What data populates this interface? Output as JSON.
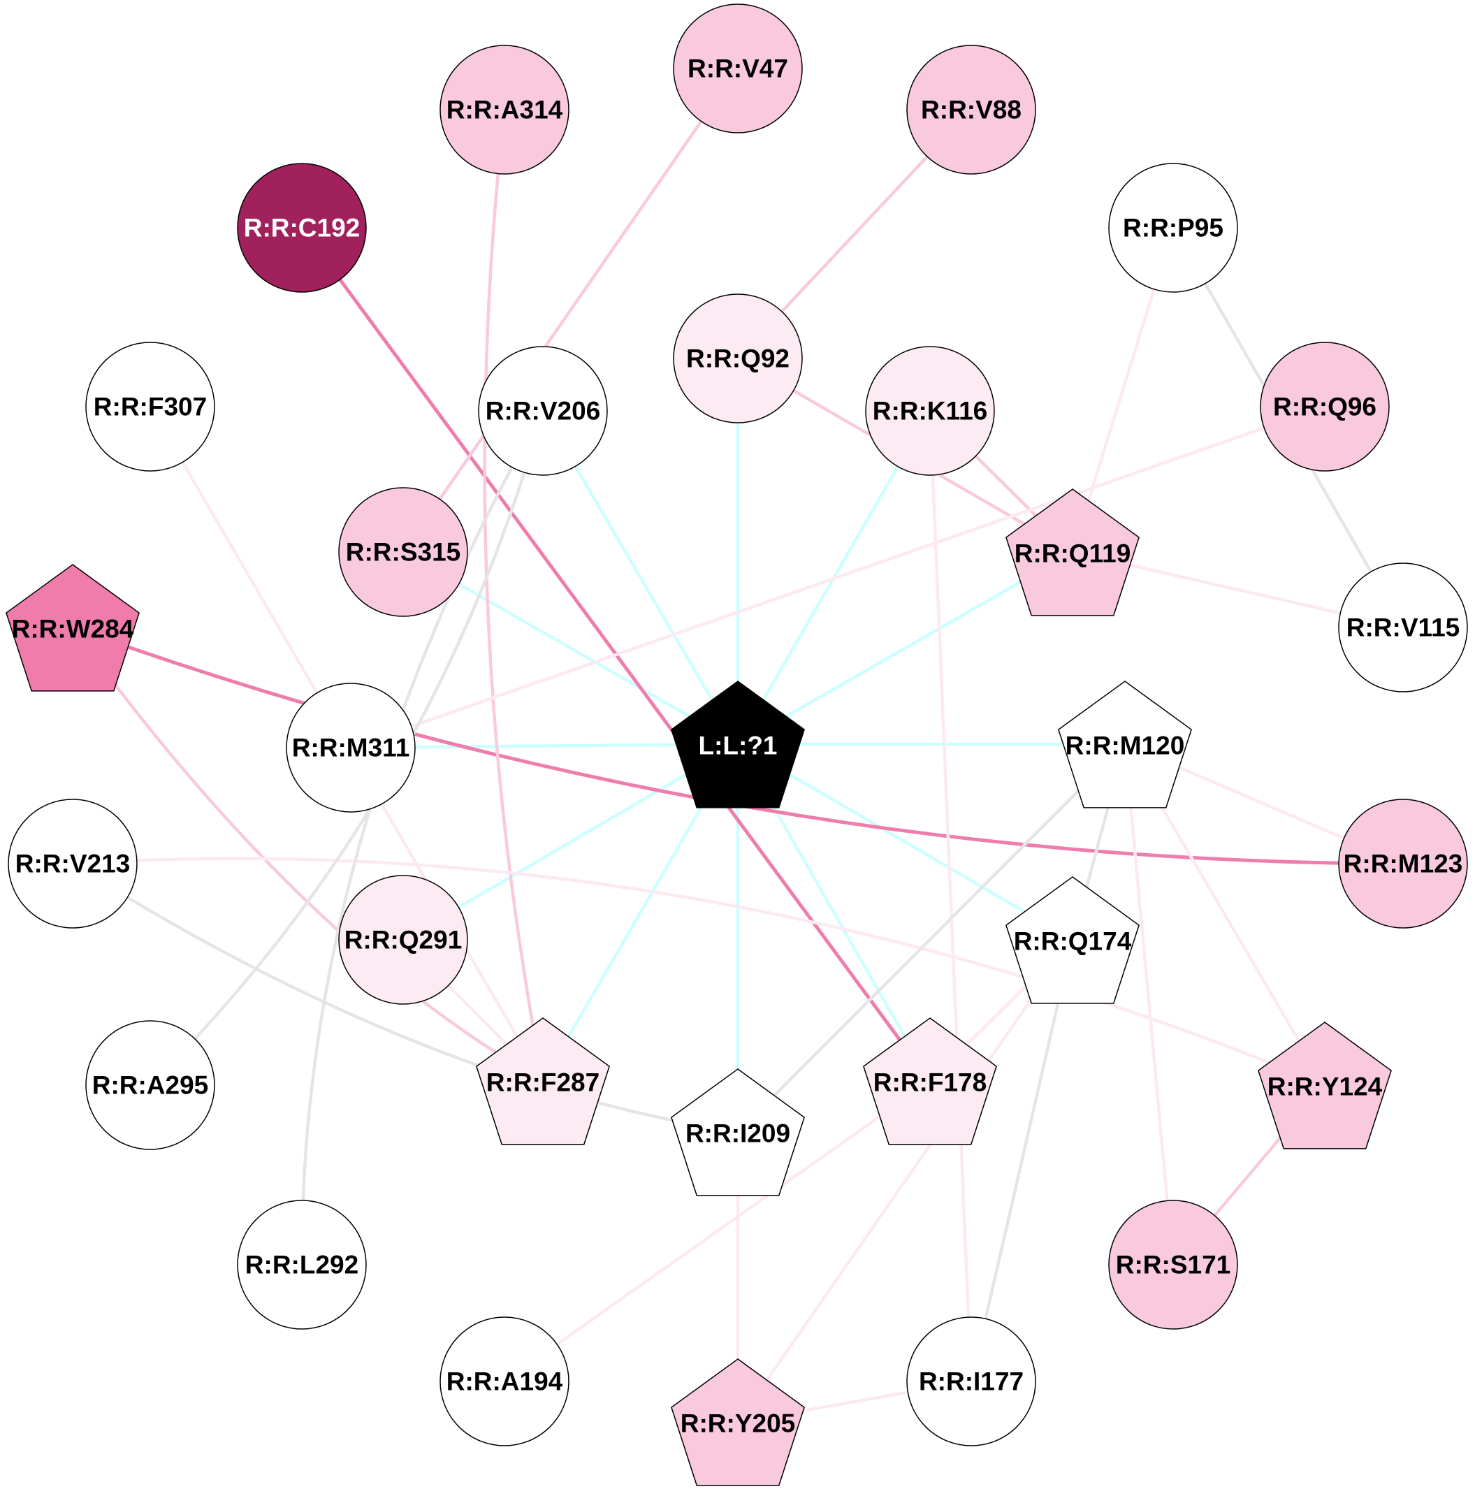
{
  "palette": {
    "ligand": "#000000",
    "dark": "#a0215c",
    "strong": "#ef7cab",
    "mid": "#f9c9dd",
    "light": "#fcebf3",
    "none": "#ffffff",
    "edge_ligand": "#ccffff",
    "edge_grey": "#e5e5e5",
    "edge_strong": "#ee7dab",
    "edge_mid": "#f9c9dd",
    "edge_light": "#fce9f1"
  },
  "nodes": [
    {
      "id": "L:L:?1",
      "label": "L:L:?1",
      "shape": "pentagon",
      "fill": "ligand",
      "text": "#ffffff"
    },
    {
      "id": "R:R:V47",
      "label": "R:R:V47",
      "shape": "circle",
      "fill": "mid"
    },
    {
      "id": "R:R:A314",
      "label": "R:R:A314",
      "shape": "circle",
      "fill": "mid"
    },
    {
      "id": "R:R:V88",
      "label": "R:R:V88",
      "shape": "circle",
      "fill": "mid"
    },
    {
      "id": "R:R:C192",
      "label": "R:R:C192",
      "shape": "circle",
      "fill": "dark",
      "text": "#ffffff"
    },
    {
      "id": "R:R:P95",
      "label": "R:R:P95",
      "shape": "circle",
      "fill": "none"
    },
    {
      "id": "R:R:Q92",
      "label": "R:R:Q92",
      "shape": "circle",
      "fill": "light"
    },
    {
      "id": "R:R:F307",
      "label": "R:R:F307",
      "shape": "circle",
      "fill": "none"
    },
    {
      "id": "R:R:V206",
      "label": "R:R:V206",
      "shape": "circle",
      "fill": "none"
    },
    {
      "id": "R:R:K116",
      "label": "R:R:K116",
      "shape": "circle",
      "fill": "light"
    },
    {
      "id": "R:R:Q96",
      "label": "R:R:Q96",
      "shape": "circle",
      "fill": "mid"
    },
    {
      "id": "R:R:S315",
      "label": "R:R:S315",
      "shape": "circle",
      "fill": "mid"
    },
    {
      "id": "R:R:Q119",
      "label": "R:R:Q119",
      "shape": "pentagon",
      "fill": "mid"
    },
    {
      "id": "R:R:W284",
      "label": "R:R:W284",
      "shape": "pentagon",
      "fill": "strong"
    },
    {
      "id": "R:R:V115",
      "label": "R:R:V115",
      "shape": "circle",
      "fill": "none"
    },
    {
      "id": "R:R:M311",
      "label": "R:R:M311",
      "shape": "circle",
      "fill": "none"
    },
    {
      "id": "R:R:M120",
      "label": "R:R:M120",
      "shape": "pentagon",
      "fill": "none"
    },
    {
      "id": "R:R:V213",
      "label": "R:R:V213",
      "shape": "circle",
      "fill": "none"
    },
    {
      "id": "R:R:M123",
      "label": "R:R:M123",
      "shape": "circle",
      "fill": "mid"
    },
    {
      "id": "R:R:Q291",
      "label": "R:R:Q291",
      "shape": "circle",
      "fill": "light"
    },
    {
      "id": "R:R:Q174",
      "label": "R:R:Q174",
      "shape": "pentagon",
      "fill": "none"
    },
    {
      "id": "R:R:A295",
      "label": "R:R:A295",
      "shape": "circle",
      "fill": "none"
    },
    {
      "id": "R:R:F287",
      "label": "R:R:F287",
      "shape": "pentagon",
      "fill": "light"
    },
    {
      "id": "R:R:F178",
      "label": "R:R:F178",
      "shape": "pentagon",
      "fill": "light"
    },
    {
      "id": "R:R:Y124",
      "label": "R:R:Y124",
      "shape": "pentagon",
      "fill": "mid"
    },
    {
      "id": "R:R:I209",
      "label": "R:R:I209",
      "shape": "pentagon",
      "fill": "none"
    },
    {
      "id": "R:R:L292",
      "label": "R:R:L292",
      "shape": "circle",
      "fill": "none"
    },
    {
      "id": "R:R:S171",
      "label": "R:R:S171",
      "shape": "circle",
      "fill": "mid"
    },
    {
      "id": "R:R:A194",
      "label": "R:R:A194",
      "shape": "circle",
      "fill": "none"
    },
    {
      "id": "R:R:I177",
      "label": "R:R:I177",
      "shape": "circle",
      "fill": "none"
    },
    {
      "id": "R:R:Y205",
      "label": "R:R:Y205",
      "shape": "pentagon",
      "fill": "mid"
    }
  ],
  "edges": [
    {
      "from": "L:L:?1",
      "to": "R:R:Q92",
      "color": "edge_ligand"
    },
    {
      "from": "L:L:?1",
      "to": "R:R:V206",
      "color": "edge_ligand"
    },
    {
      "from": "L:L:?1",
      "to": "R:R:K116",
      "color": "edge_ligand"
    },
    {
      "from": "L:L:?1",
      "to": "R:R:Q119",
      "color": "edge_ligand"
    },
    {
      "from": "L:L:?1",
      "to": "R:R:S315",
      "color": "edge_ligand"
    },
    {
      "from": "L:L:?1",
      "to": "R:R:M311",
      "color": "edge_ligand"
    },
    {
      "from": "L:L:?1",
      "to": "R:R:M120",
      "color": "edge_ligand"
    },
    {
      "from": "L:L:?1",
      "to": "R:R:Q291",
      "color": "edge_ligand"
    },
    {
      "from": "L:L:?1",
      "to": "R:R:F287",
      "color": "edge_ligand"
    },
    {
      "from": "L:L:?1",
      "to": "R:R:I209",
      "color": "edge_ligand"
    },
    {
      "from": "L:L:?1",
      "to": "R:R:F178",
      "color": "edge_ligand"
    },
    {
      "from": "L:L:?1",
      "to": "R:R:Q174",
      "color": "edge_ligand"
    },
    {
      "from": "R:R:C192",
      "to": "R:R:F178",
      "color": "edge_strong"
    },
    {
      "from": "R:R:W284",
      "to": "R:R:M123",
      "color": "edge_strong",
      "curved": true
    },
    {
      "from": "R:R:V47",
      "to": "R:R:S315",
      "color": "edge_mid"
    },
    {
      "from": "R:R:V88",
      "to": "R:R:Q92",
      "color": "edge_mid"
    },
    {
      "from": "R:R:A314",
      "to": "R:R:F287",
      "color": "edge_mid",
      "curved": true
    },
    {
      "from": "R:R:Q92",
      "to": "R:R:Q119",
      "color": "edge_mid"
    },
    {
      "from": "R:R:K116",
      "to": "R:R:Q119",
      "color": "edge_mid"
    },
    {
      "from": "R:R:W284",
      "to": "R:R:F287",
      "color": "edge_mid",
      "curved": true
    },
    {
      "from": "R:R:Y124",
      "to": "R:R:S171",
      "color": "edge_mid"
    },
    {
      "from": "R:R:P95",
      "to": "R:R:Q119",
      "color": "edge_light"
    },
    {
      "from": "R:R:Q96",
      "to": "R:R:M311",
      "color": "edge_light"
    },
    {
      "from": "R:R:Q119",
      "to": "R:R:V115",
      "color": "edge_light"
    },
    {
      "from": "R:R:F307",
      "to": "R:R:F287",
      "color": "edge_light"
    },
    {
      "from": "R:R:K116",
      "to": "R:R:I177",
      "color": "edge_light"
    },
    {
      "from": "R:R:M120",
      "to": "R:R:M123",
      "color": "edge_light"
    },
    {
      "from": "R:R:M120",
      "to": "R:R:Y124",
      "color": "edge_light"
    },
    {
      "from": "R:R:M120",
      "to": "R:R:S171",
      "color": "edge_light"
    },
    {
      "from": "R:R:V213",
      "to": "R:R:Y124",
      "color": "edge_light",
      "curved": true
    },
    {
      "from": "R:R:Q291",
      "to": "R:R:F287",
      "color": "edge_light"
    },
    {
      "from": "R:R:Q174",
      "to": "R:R:F178",
      "color": "edge_light"
    },
    {
      "from": "R:R:Q174",
      "to": "R:R:Y205",
      "color": "edge_light"
    },
    {
      "from": "R:R:F178",
      "to": "R:R:A194",
      "color": "edge_light"
    },
    {
      "from": "R:R:I209",
      "to": "R:R:Y205",
      "color": "edge_light"
    },
    {
      "from": "R:R:Y205",
      "to": "R:R:I177",
      "color": "edge_light"
    },
    {
      "from": "R:R:P95",
      "to": "R:R:V115",
      "color": "edge_grey"
    },
    {
      "from": "R:R:V206",
      "to": "R:R:A295",
      "color": "edge_grey",
      "curved": true
    },
    {
      "from": "R:R:V206",
      "to": "R:R:L292",
      "color": "edge_grey",
      "curved": true
    },
    {
      "from": "R:R:V213",
      "to": "R:R:I209",
      "color": "edge_grey",
      "curved": true
    },
    {
      "from": "R:R:M120",
      "to": "R:R:I209",
      "color": "edge_grey"
    },
    {
      "from": "R:R:M120",
      "to": "R:R:Q174",
      "color": "edge_grey"
    },
    {
      "from": "R:R:Q174",
      "to": "R:R:I177",
      "color": "edge_grey"
    }
  ]
}
